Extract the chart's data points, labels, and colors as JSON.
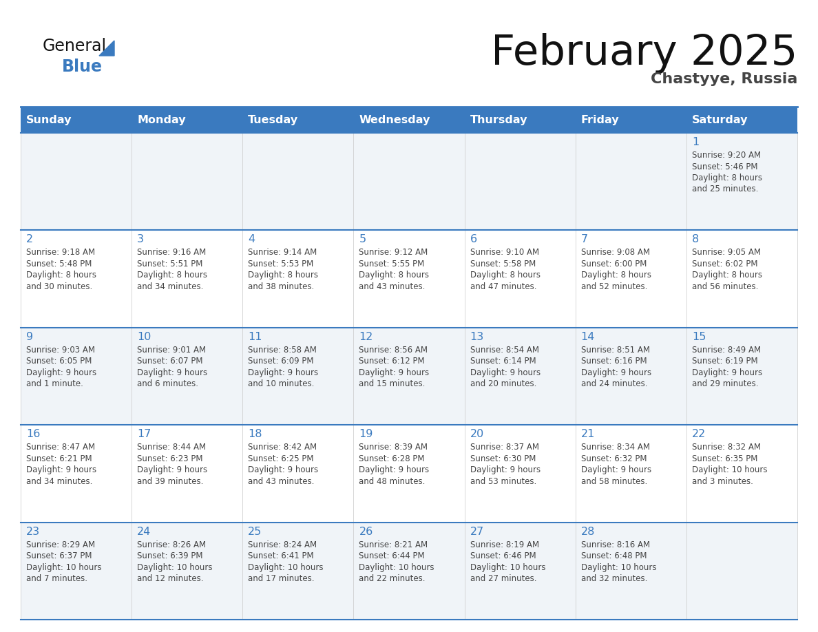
{
  "title": "February 2025",
  "subtitle": "Chastyye, Russia",
  "days_of_week": [
    "Sunday",
    "Monday",
    "Tuesday",
    "Wednesday",
    "Thursday",
    "Friday",
    "Saturday"
  ],
  "header_bg_color": "#3a7abf",
  "header_text_color": "#ffffff",
  "cell_bg_even": "#f0f4f8",
  "cell_bg_odd": "#ffffff",
  "day_number_color": "#3a7abf",
  "text_color": "#444444",
  "line_color": "#3a7abf",
  "calendar_data": [
    {
      "day": 1,
      "col": 6,
      "row": 0,
      "sunrise": "9:20 AM",
      "sunset": "5:46 PM",
      "daylight": "8 hours and 25 minutes."
    },
    {
      "day": 2,
      "col": 0,
      "row": 1,
      "sunrise": "9:18 AM",
      "sunset": "5:48 PM",
      "daylight": "8 hours and 30 minutes."
    },
    {
      "day": 3,
      "col": 1,
      "row": 1,
      "sunrise": "9:16 AM",
      "sunset": "5:51 PM",
      "daylight": "8 hours and 34 minutes."
    },
    {
      "day": 4,
      "col": 2,
      "row": 1,
      "sunrise": "9:14 AM",
      "sunset": "5:53 PM",
      "daylight": "8 hours and 38 minutes."
    },
    {
      "day": 5,
      "col": 3,
      "row": 1,
      "sunrise": "9:12 AM",
      "sunset": "5:55 PM",
      "daylight": "8 hours and 43 minutes."
    },
    {
      "day": 6,
      "col": 4,
      "row": 1,
      "sunrise": "9:10 AM",
      "sunset": "5:58 PM",
      "daylight": "8 hours and 47 minutes."
    },
    {
      "day": 7,
      "col": 5,
      "row": 1,
      "sunrise": "9:08 AM",
      "sunset": "6:00 PM",
      "daylight": "8 hours and 52 minutes."
    },
    {
      "day": 8,
      "col": 6,
      "row": 1,
      "sunrise": "9:05 AM",
      "sunset": "6:02 PM",
      "daylight": "8 hours and 56 minutes."
    },
    {
      "day": 9,
      "col": 0,
      "row": 2,
      "sunrise": "9:03 AM",
      "sunset": "6:05 PM",
      "daylight": "9 hours and 1 minute."
    },
    {
      "day": 10,
      "col": 1,
      "row": 2,
      "sunrise": "9:01 AM",
      "sunset": "6:07 PM",
      "daylight": "9 hours and 6 minutes."
    },
    {
      "day": 11,
      "col": 2,
      "row": 2,
      "sunrise": "8:58 AM",
      "sunset": "6:09 PM",
      "daylight": "9 hours and 10 minutes."
    },
    {
      "day": 12,
      "col": 3,
      "row": 2,
      "sunrise": "8:56 AM",
      "sunset": "6:12 PM",
      "daylight": "9 hours and 15 minutes."
    },
    {
      "day": 13,
      "col": 4,
      "row": 2,
      "sunrise": "8:54 AM",
      "sunset": "6:14 PM",
      "daylight": "9 hours and 20 minutes."
    },
    {
      "day": 14,
      "col": 5,
      "row": 2,
      "sunrise": "8:51 AM",
      "sunset": "6:16 PM",
      "daylight": "9 hours and 24 minutes."
    },
    {
      "day": 15,
      "col": 6,
      "row": 2,
      "sunrise": "8:49 AM",
      "sunset": "6:19 PM",
      "daylight": "9 hours and 29 minutes."
    },
    {
      "day": 16,
      "col": 0,
      "row": 3,
      "sunrise": "8:47 AM",
      "sunset": "6:21 PM",
      "daylight": "9 hours and 34 minutes."
    },
    {
      "day": 17,
      "col": 1,
      "row": 3,
      "sunrise": "8:44 AM",
      "sunset": "6:23 PM",
      "daylight": "9 hours and 39 minutes."
    },
    {
      "day": 18,
      "col": 2,
      "row": 3,
      "sunrise": "8:42 AM",
      "sunset": "6:25 PM",
      "daylight": "9 hours and 43 minutes."
    },
    {
      "day": 19,
      "col": 3,
      "row": 3,
      "sunrise": "8:39 AM",
      "sunset": "6:28 PM",
      "daylight": "9 hours and 48 minutes."
    },
    {
      "day": 20,
      "col": 4,
      "row": 3,
      "sunrise": "8:37 AM",
      "sunset": "6:30 PM",
      "daylight": "9 hours and 53 minutes."
    },
    {
      "day": 21,
      "col": 5,
      "row": 3,
      "sunrise": "8:34 AM",
      "sunset": "6:32 PM",
      "daylight": "9 hours and 58 minutes."
    },
    {
      "day": 22,
      "col": 6,
      "row": 3,
      "sunrise": "8:32 AM",
      "sunset": "6:35 PM",
      "daylight": "10 hours and 3 minutes."
    },
    {
      "day": 23,
      "col": 0,
      "row": 4,
      "sunrise": "8:29 AM",
      "sunset": "6:37 PM",
      "daylight": "10 hours and 7 minutes."
    },
    {
      "day": 24,
      "col": 1,
      "row": 4,
      "sunrise": "8:26 AM",
      "sunset": "6:39 PM",
      "daylight": "10 hours and 12 minutes."
    },
    {
      "day": 25,
      "col": 2,
      "row": 4,
      "sunrise": "8:24 AM",
      "sunset": "6:41 PM",
      "daylight": "10 hours and 17 minutes."
    },
    {
      "day": 26,
      "col": 3,
      "row": 4,
      "sunrise": "8:21 AM",
      "sunset": "6:44 PM",
      "daylight": "10 hours and 22 minutes."
    },
    {
      "day": 27,
      "col": 4,
      "row": 4,
      "sunrise": "8:19 AM",
      "sunset": "6:46 PM",
      "daylight": "10 hours and 27 minutes."
    },
    {
      "day": 28,
      "col": 5,
      "row": 4,
      "sunrise": "8:16 AM",
      "sunset": "6:48 PM",
      "daylight": "10 hours and 32 minutes."
    }
  ],
  "num_rows": 5,
  "num_cols": 7
}
